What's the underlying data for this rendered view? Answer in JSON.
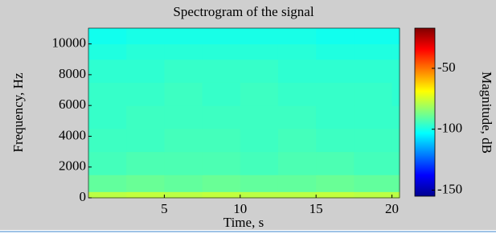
{
  "chart_data": {
    "type": "heatmap",
    "title": "Spectrogram of the signal",
    "x_label": "Time, s",
    "y_label": "Frequency, Hz",
    "colorbar_label": "Magnitude, dB",
    "colormap": "jet",
    "x_edges": [
      0,
      2.5,
      5,
      7.5,
      10,
      12.5,
      15,
      17.5,
      20,
      20.5
    ],
    "y_edges": [
      0,
      400,
      1500,
      3000,
      4500,
      6000,
      7500,
      9000,
      10000,
      11025
    ],
    "values": [
      [
        -78,
        -77,
        -78,
        -77,
        -78,
        -78,
        -77,
        -78,
        -78
      ],
      [
        -90,
        -89,
        -90,
        -89,
        -90,
        -90,
        -89,
        -90,
        -90
      ],
      [
        -94,
        -93,
        -93,
        -93,
        -94,
        -93,
        -93,
        -94,
        -94
      ],
      [
        -95,
        -95,
        -94,
        -94,
        -95,
        -94,
        -95,
        -95,
        -95
      ],
      [
        -96,
        -95,
        -95,
        -95,
        -95,
        -95,
        -96,
        -96,
        -96
      ],
      [
        -96,
        -96,
        -95,
        -96,
        -95,
        -96,
        -96,
        -96,
        -97
      ],
      [
        -97,
        -97,
        -96,
        -96,
        -96,
        -97,
        -97,
        -97,
        -97
      ],
      [
        -99,
        -98,
        -98,
        -98,
        -98,
        -98,
        -99,
        -99,
        -99
      ],
      [
        -101,
        -100,
        -100,
        -100,
        -100,
        -100,
        -101,
        -101,
        -101
      ]
    ],
    "xlim": [
      0,
      20.5
    ],
    "xticks": [
      5,
      10,
      15,
      20
    ],
    "ylim": [
      0,
      11025
    ],
    "yticks": [
      0,
      2000,
      4000,
      6000,
      8000,
      10000
    ],
    "clim": [
      -155,
      -17
    ],
    "cticks": [
      -150,
      -100,
      -50
    ]
  }
}
